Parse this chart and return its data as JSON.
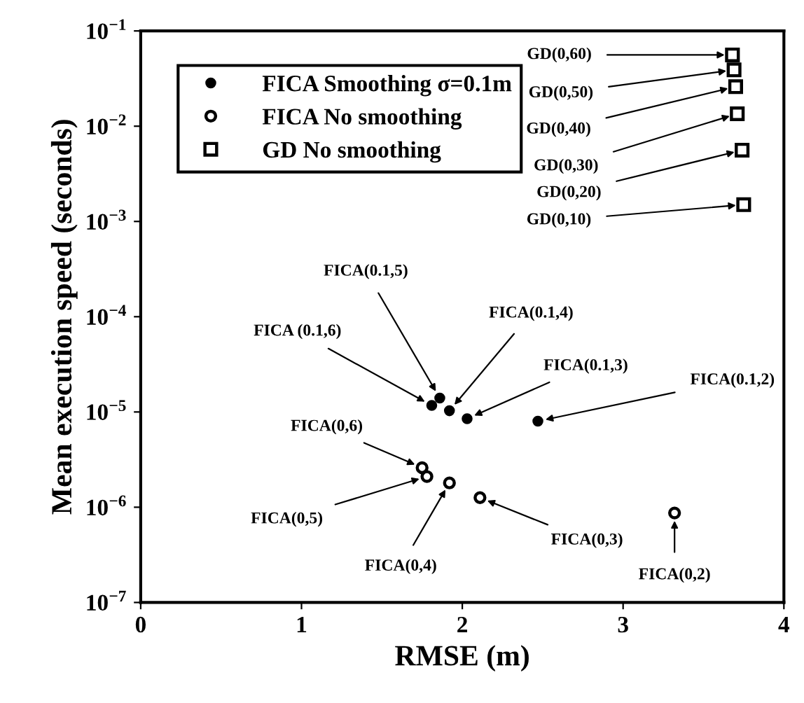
{
  "chart_data": {
    "type": "scatter",
    "xlabel": "RMSE (m)",
    "ylabel": "Mean execution speed (seconds)",
    "log": "y",
    "xlim": [
      0,
      4
    ],
    "xticks": [
      0,
      1,
      2,
      3,
      4
    ],
    "ylim": [
      1e-07,
      0.1
    ],
    "yticks": [
      {
        "value": 1e-07,
        "label": "10$^{−7}$"
      },
      {
        "value": 1e-06,
        "label": "10$^{−6}$"
      },
      {
        "value": 1e-05,
        "label": "10$^{−5}$"
      },
      {
        "value": 0.0001,
        "label": "10$^{−4}$"
      },
      {
        "value": 0.001,
        "label": "10$^{−3}$"
      },
      {
        "value": 0.01,
        "label": "10$^{−2}$"
      },
      {
        "value": 0.1,
        "label": "10$^{−1}$"
      }
    ],
    "grid": false,
    "legend": "top left",
    "series": [
      {
        "name": "FICA Smoothing σ=0.1m",
        "color": "#000000",
        "marker": "circle",
        "x": [
          1.81,
          1.86,
          1.92,
          2.03,
          2.47
        ],
        "values": [
          1.17e-05,
          1.4e-05,
          1.03e-05,
          8.5e-06,
          8e-06
        ]
      },
      {
        "name": "FICA No smoothing",
        "color": "#000000",
        "marker": "circle",
        "x": [
          1.75,
          1.78,
          1.92,
          2.11,
          3.32
        ],
        "values": [
          2.6e-06,
          2.1e-06,
          1.8e-06,
          1.26e-06,
          8.7e-07
        ]
      },
      {
        "name": "GD No smoothing",
        "color": "#000000",
        "marker": "square",
        "x": [
          3.68,
          3.69,
          3.7,
          3.71,
          3.74,
          3.75
        ],
        "values": [
          0.056,
          0.039,
          0.026,
          0.0135,
          0.0056,
          0.0015
        ]
      }
    ],
    "annotations": [
      {
        "text": "GD(0,60)",
        "x": 3.68,
        "y": 0.056
      },
      {
        "text": "GD(0,50)",
        "x": 3.69,
        "y": 0.039
      },
      {
        "text": "GD(0,40)",
        "x": 3.7,
        "y": 0.026
      },
      {
        "text": "GD(0,30)",
        "x": 3.71,
        "y": 0.0135
      },
      {
        "text": "GD(0,20)",
        "x": 3.74,
        "y": 0.0056
      },
      {
        "text": "GD(0,10)",
        "x": 3.75,
        "y": 0.0015
      },
      {
        "text": "FICA (0.1,6)",
        "x": 1.81,
        "y": 1.17e-05
      },
      {
        "text": "FICA(0.1,5)",
        "x": 1.86,
        "y": 1.4e-05
      },
      {
        "text": "FICA(0.1,4)",
        "x": 1.92,
        "y": 1.03e-05
      },
      {
        "text": "FICA(0.1,3)",
        "x": 2.03,
        "y": 8.5e-06
      },
      {
        "text": "FICA(0.1,2)",
        "x": 2.47,
        "y": 8e-06
      },
      {
        "text": "FICA(0,6)",
        "x": 1.75,
        "y": 2.6e-06
      },
      {
        "text": "FICA(0,5)",
        "x": 1.78,
        "y": 2.1e-06
      },
      {
        "text": "FICA(0,4)",
        "x": 1.92,
        "y": 1.8e-06
      },
      {
        "text": "FICA(0,3)",
        "x": 2.11,
        "y": 1.26e-06
      },
      {
        "text": "FICA(0,2)",
        "x": 3.32,
        "y": 8.7e-07
      }
    ]
  }
}
